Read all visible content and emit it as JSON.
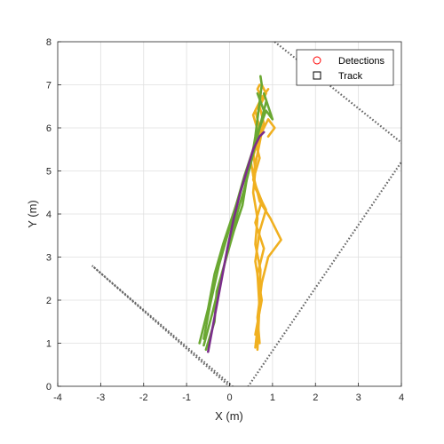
{
  "chart_data": {
    "type": "line",
    "xlabel": "X (m)",
    "ylabel": "Y (m)",
    "xlim": [
      -4,
      4
    ],
    "ylim": [
      0,
      8
    ],
    "xticks": [
      "-4",
      "-3",
      "-2",
      "-1",
      "0",
      "1",
      "2",
      "3",
      "4"
    ],
    "yticks": [
      "0",
      "1",
      "2",
      "3",
      "4",
      "5",
      "6",
      "7",
      "8"
    ],
    "grid": true,
    "legend": {
      "location": "top-right",
      "entries": [
        {
          "label": "Detections",
          "marker": "circle",
          "color": "#ff0000"
        },
        {
          "label": "Track",
          "marker": "square",
          "color": "#000000"
        }
      ]
    },
    "boundary": {
      "style": "dotted",
      "color": "#666666",
      "x": [
        1.05,
        4.2,
        0.3,
        -3.2,
        0.0
      ],
      "y": [
        8.0,
        5.5,
        -0.2,
        2.8,
        0.0
      ]
    },
    "series": [
      {
        "color": "#f0b020",
        "x": [
          0.65,
          0.68,
          0.7,
          0.72,
          0.6,
          0.65,
          0.55,
          0.6,
          0.55,
          0.7,
          0.6,
          0.75,
          0.65,
          0.7
        ],
        "y": [
          0.85,
          1.5,
          2.1,
          2.7,
          3.3,
          3.9,
          4.5,
          5.0,
          5.5,
          6.0,
          6.4,
          6.7,
          6.9,
          7.0
        ]
      },
      {
        "color": "#f0b020",
        "x": [
          0.6,
          0.7,
          0.65,
          0.8,
          0.6,
          0.75,
          0.55,
          0.7,
          0.6,
          0.8,
          0.7,
          0.85,
          0.75
        ],
        "y": [
          0.9,
          1.8,
          2.6,
          3.2,
          3.8,
          4.3,
          4.8,
          5.3,
          5.7,
          6.1,
          6.5,
          6.8,
          7.0
        ]
      },
      {
        "color": "#f0b020",
        "x": [
          0.7,
          0.65,
          0.75,
          0.9,
          1.2,
          0.95,
          0.7,
          0.55,
          0.65,
          0.75,
          0.9,
          1.05,
          0.9
        ],
        "y": [
          1.0,
          1.6,
          2.4,
          3.0,
          3.4,
          3.9,
          4.3,
          4.9,
          5.4,
          5.9,
          6.2,
          6.0,
          5.8
        ]
      },
      {
        "color": "#f0b020",
        "x": [
          0.6,
          0.75,
          0.6,
          0.7,
          0.85,
          0.6,
          0.5,
          0.7,
          0.55,
          0.75,
          0.9
        ],
        "y": [
          1.2,
          2.0,
          2.9,
          3.6,
          4.1,
          4.6,
          5.2,
          5.8,
          6.3,
          6.7,
          6.9
        ]
      },
      {
        "color": "#6aa832",
        "x": [
          -0.6,
          -0.4,
          -0.2,
          0.0,
          0.2,
          0.35,
          0.5,
          0.6,
          0.65,
          0.7,
          0.75,
          0.72
        ],
        "y": [
          0.95,
          1.7,
          2.5,
          3.3,
          4.1,
          4.6,
          5.2,
          5.8,
          6.2,
          6.6,
          7.0,
          7.2
        ]
      },
      {
        "color": "#6aa832",
        "x": [
          -0.55,
          -0.35,
          -0.3,
          -0.1,
          0.1,
          0.3,
          0.4,
          0.55,
          0.7,
          0.85,
          1.0,
          0.9,
          0.8
        ],
        "y": [
          0.85,
          1.5,
          2.2,
          2.9,
          3.6,
          4.2,
          4.8,
          5.4,
          6.0,
          6.4,
          6.2,
          6.5,
          6.8
        ]
      },
      {
        "color": "#6aa832",
        "x": [
          -0.7,
          -0.5,
          -0.35,
          -0.15,
          0.05,
          0.25,
          0.45,
          0.6,
          0.75,
          0.85
        ],
        "y": [
          1.0,
          1.8,
          2.6,
          3.3,
          3.9,
          4.5,
          5.1,
          5.7,
          6.2,
          6.6
        ]
      },
      {
        "color": "#6aa832",
        "x": [
          -0.6,
          -0.45,
          -0.25,
          -0.05,
          0.15,
          0.35,
          0.55,
          0.7,
          0.8,
          0.65
        ],
        "y": [
          1.1,
          1.9,
          2.8,
          3.5,
          4.2,
          4.9,
          5.5,
          6.0,
          6.4,
          6.8
        ]
      },
      {
        "color": "#7b2d8b",
        "x": [
          -0.5,
          -0.35,
          -0.2,
          -0.05,
          0.1,
          0.25,
          0.4,
          0.55,
          0.7,
          0.8
        ],
        "y": [
          0.8,
          1.6,
          2.4,
          3.2,
          3.9,
          4.5,
          5.0,
          5.5,
          5.8,
          5.9
        ]
      }
    ]
  }
}
